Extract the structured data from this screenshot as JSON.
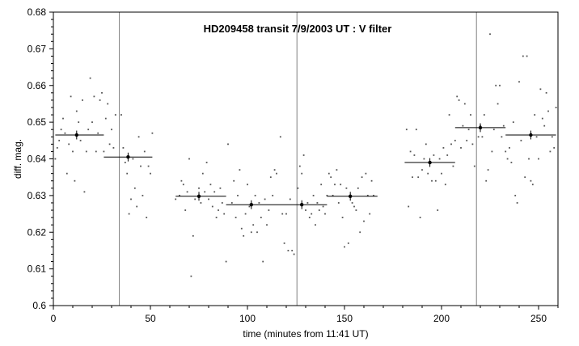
{
  "chart_data": {
    "type": "scatter",
    "title": "HD209458 transit 7/9/2003 UT : V filter",
    "xlabel": "time (minutes from 11:41 UT)",
    "ylabel": "diff. mag.",
    "xlim": [
      0,
      260
    ],
    "ylim": [
      0.6,
      0.68
    ],
    "x_ticks": [
      0,
      50,
      100,
      150,
      200,
      250
    ],
    "x_tick_labels": [
      "0",
      "50",
      "100",
      "150",
      "200",
      "250"
    ],
    "y_ticks": [
      0.6,
      0.61,
      0.62,
      0.63,
      0.64,
      0.65,
      0.66,
      0.67,
      0.68
    ],
    "y_tick_labels": [
      "0.6",
      "0.61",
      "0.62",
      "0.63",
      "0.64",
      "0.65",
      "0.66",
      "0.67",
      "0.68"
    ],
    "grid": false,
    "legend": "none",
    "vertical_lines_x": [
      34,
      125.5,
      218
    ],
    "colors": {
      "points": "#000000",
      "lines": "#808080",
      "axes": "#000000"
    },
    "points": [
      {
        "x": 1,
        "y": 0.64
      },
      {
        "x": 2,
        "y": 0.643
      },
      {
        "x": 3,
        "y": 0.645
      },
      {
        "x": 4,
        "y": 0.648
      },
      {
        "x": 5,
        "y": 0.651
      },
      {
        "x": 6,
        "y": 0.647
      },
      {
        "x": 7,
        "y": 0.636
      },
      {
        "x": 8,
        "y": 0.644
      },
      {
        "x": 9,
        "y": 0.657
      },
      {
        "x": 10,
        "y": 0.642
      },
      {
        "x": 11,
        "y": 0.634
      },
      {
        "x": 12,
        "y": 0.653
      },
      {
        "x": 13,
        "y": 0.65
      },
      {
        "x": 14,
        "y": 0.645
      },
      {
        "x": 15,
        "y": 0.656
      },
      {
        "x": 16,
        "y": 0.631
      },
      {
        "x": 17,
        "y": 0.642
      },
      {
        "x": 18,
        "y": 0.648
      },
      {
        "x": 19,
        "y": 0.662
      },
      {
        "x": 20,
        "y": 0.65
      },
      {
        "x": 21,
        "y": 0.657
      },
      {
        "x": 22,
        "y": 0.642
      },
      {
        "x": 23,
        "y": 0.647
      },
      {
        "x": 24,
        "y": 0.656
      },
      {
        "x": 25,
        "y": 0.658
      },
      {
        "x": 26,
        "y": 0.642
      },
      {
        "x": 27,
        "y": 0.651
      },
      {
        "x": 28,
        "y": 0.655
      },
      {
        "x": 29,
        "y": 0.644
      },
      {
        "x": 30,
        "y": 0.648
      },
      {
        "x": 31,
        "y": 0.643
      },
      {
        "x": 32,
        "y": 0.652
      },
      {
        "x": 35,
        "y": 0.652
      },
      {
        "x": 36,
        "y": 0.643
      },
      {
        "x": 37,
        "y": 0.639
      },
      {
        "x": 38,
        "y": 0.636
      },
      {
        "x": 39,
        "y": 0.625
      },
      {
        "x": 40,
        "y": 0.629
      },
      {
        "x": 41,
        "y": 0.64
      },
      {
        "x": 42,
        "y": 0.632
      },
      {
        "x": 43,
        "y": 0.627
      },
      {
        "x": 44,
        "y": 0.646
      },
      {
        "x": 45,
        "y": 0.638
      },
      {
        "x": 46,
        "y": 0.63
      },
      {
        "x": 47,
        "y": 0.642
      },
      {
        "x": 48,
        "y": 0.624
      },
      {
        "x": 49,
        "y": 0.638
      },
      {
        "x": 50,
        "y": 0.636
      },
      {
        "x": 51,
        "y": 0.647
      },
      {
        "x": 63,
        "y": 0.629
      },
      {
        "x": 65,
        "y": 0.63
      },
      {
        "x": 66,
        "y": 0.634
      },
      {
        "x": 67,
        "y": 0.633
      },
      {
        "x": 68,
        "y": 0.626
      },
      {
        "x": 69,
        "y": 0.631
      },
      {
        "x": 70,
        "y": 0.64
      },
      {
        "x": 71,
        "y": 0.608
      },
      {
        "x": 72,
        "y": 0.619
      },
      {
        "x": 73,
        "y": 0.629
      },
      {
        "x": 75,
        "y": 0.632
      },
      {
        "x": 76,
        "y": 0.628
      },
      {
        "x": 77,
        "y": 0.636
      },
      {
        "x": 78,
        "y": 0.631
      },
      {
        "x": 79,
        "y": 0.639
      },
      {
        "x": 80,
        "y": 0.629
      },
      {
        "x": 81,
        "y": 0.633
      },
      {
        "x": 82,
        "y": 0.627
      },
      {
        "x": 83,
        "y": 0.631
      },
      {
        "x": 84,
        "y": 0.624
      },
      {
        "x": 85,
        "y": 0.626
      },
      {
        "x": 86,
        "y": 0.632
      },
      {
        "x": 87,
        "y": 0.628
      },
      {
        "x": 88,
        "y": 0.625
      },
      {
        "x": 89,
        "y": 0.612
      },
      {
        "x": 90,
        "y": 0.644
      },
      {
        "x": 92,
        "y": 0.628
      },
      {
        "x": 93,
        "y": 0.634
      },
      {
        "x": 94,
        "y": 0.624
      },
      {
        "x": 95,
        "y": 0.63
      },
      {
        "x": 96,
        "y": 0.637
      },
      {
        "x": 97,
        "y": 0.621
      },
      {
        "x": 98,
        "y": 0.619
      },
      {
        "x": 99,
        "y": 0.625
      },
      {
        "x": 100,
        "y": 0.633
      },
      {
        "x": 101,
        "y": 0.627
      },
      {
        "x": 102,
        "y": 0.62
      },
      {
        "x": 103,
        "y": 0.622
      },
      {
        "x": 104,
        "y": 0.63
      },
      {
        "x": 105,
        "y": 0.62
      },
      {
        "x": 106,
        "y": 0.628
      },
      {
        "x": 107,
        "y": 0.624
      },
      {
        "x": 108,
        "y": 0.612
      },
      {
        "x": 109,
        "y": 0.629
      },
      {
        "x": 110,
        "y": 0.622
      },
      {
        "x": 111,
        "y": 0.626
      },
      {
        "x": 112,
        "y": 0.635
      },
      {
        "x": 113,
        "y": 0.63
      },
      {
        "x": 114,
        "y": 0.637
      },
      {
        "x": 115,
        "y": 0.636
      },
      {
        "x": 117,
        "y": 0.646
      },
      {
        "x": 118,
        "y": 0.625
      },
      {
        "x": 119,
        "y": 0.617
      },
      {
        "x": 120,
        "y": 0.625
      },
      {
        "x": 121,
        "y": 0.615
      },
      {
        "x": 122,
        "y": 0.629
      },
      {
        "x": 123,
        "y": 0.615
      },
      {
        "x": 124,
        "y": 0.614
      },
      {
        "x": 126,
        "y": 0.632
      },
      {
        "x": 127,
        "y": 0.638
      },
      {
        "x": 128,
        "y": 0.636
      },
      {
        "x": 129,
        "y": 0.641
      },
      {
        "x": 130,
        "y": 0.626
      },
      {
        "x": 131,
        "y": 0.628
      },
      {
        "x": 132,
        "y": 0.624
      },
      {
        "x": 133,
        "y": 0.625
      },
      {
        "x": 134,
        "y": 0.63
      },
      {
        "x": 135,
        "y": 0.622
      },
      {
        "x": 136,
        "y": 0.628
      },
      {
        "x": 137,
        "y": 0.626
      },
      {
        "x": 138,
        "y": 0.633
      },
      {
        "x": 139,
        "y": 0.627
      },
      {
        "x": 140,
        "y": 0.625
      },
      {
        "x": 141,
        "y": 0.63
      },
      {
        "x": 142,
        "y": 0.636
      },
      {
        "x": 143,
        "y": 0.635
      },
      {
        "x": 144,
        "y": 0.63
      },
      {
        "x": 145,
        "y": 0.633
      },
      {
        "x": 146,
        "y": 0.637
      },
      {
        "x": 147,
        "y": 0.628
      },
      {
        "x": 148,
        "y": 0.633
      },
      {
        "x": 149,
        "y": 0.624
      },
      {
        "x": 150,
        "y": 0.616
      },
      {
        "x": 151,
        "y": 0.632
      },
      {
        "x": 152,
        "y": 0.617
      },
      {
        "x": 153,
        "y": 0.63
      },
      {
        "x": 154,
        "y": 0.628
      },
      {
        "x": 155,
        "y": 0.627
      },
      {
        "x": 156,
        "y": 0.626
      },
      {
        "x": 157,
        "y": 0.632
      },
      {
        "x": 158,
        "y": 0.62
      },
      {
        "x": 159,
        "y": 0.635
      },
      {
        "x": 160,
        "y": 0.623
      },
      {
        "x": 161,
        "y": 0.636
      },
      {
        "x": 162,
        "y": 0.63
      },
      {
        "x": 163,
        "y": 0.625
      },
      {
        "x": 164,
        "y": 0.634
      },
      {
        "x": 165,
        "y": 0.63
      },
      {
        "x": 182,
        "y": 0.648
      },
      {
        "x": 183,
        "y": 0.627
      },
      {
        "x": 184,
        "y": 0.642
      },
      {
        "x": 185,
        "y": 0.635
      },
      {
        "x": 186,
        "y": 0.641
      },
      {
        "x": 187,
        "y": 0.648
      },
      {
        "x": 188,
        "y": 0.635
      },
      {
        "x": 189,
        "y": 0.624
      },
      {
        "x": 190,
        "y": 0.637
      },
      {
        "x": 191,
        "y": 0.64
      },
      {
        "x": 192,
        "y": 0.644
      },
      {
        "x": 193,
        "y": 0.636
      },
      {
        "x": 194,
        "y": 0.639
      },
      {
        "x": 195,
        "y": 0.634
      },
      {
        "x": 196,
        "y": 0.641
      },
      {
        "x": 197,
        "y": 0.634
      },
      {
        "x": 198,
        "y": 0.626
      },
      {
        "x": 199,
        "y": 0.64
      },
      {
        "x": 200,
        "y": 0.636
      },
      {
        "x": 201,
        "y": 0.643
      },
      {
        "x": 202,
        "y": 0.633
      },
      {
        "x": 203,
        "y": 0.641
      },
      {
        "x": 204,
        "y": 0.652
      },
      {
        "x": 205,
        "y": 0.644
      },
      {
        "x": 206,
        "y": 0.638
      },
      {
        "x": 207,
        "y": 0.645
      },
      {
        "x": 208,
        "y": 0.657
      },
      {
        "x": 209,
        "y": 0.656
      },
      {
        "x": 210,
        "y": 0.643
      },
      {
        "x": 211,
        "y": 0.649
      },
      {
        "x": 212,
        "y": 0.655
      },
      {
        "x": 213,
        "y": 0.645
      },
      {
        "x": 214,
        "y": 0.648
      },
      {
        "x": 215,
        "y": 0.652
      },
      {
        "x": 216,
        "y": 0.644
      },
      {
        "x": 217,
        "y": 0.638
      },
      {
        "x": 219,
        "y": 0.646
      },
      {
        "x": 220,
        "y": 0.649
      },
      {
        "x": 221,
        "y": 0.646
      },
      {
        "x": 222,
        "y": 0.652
      },
      {
        "x": 223,
        "y": 0.634
      },
      {
        "x": 224,
        "y": 0.637
      },
      {
        "x": 225,
        "y": 0.674
      },
      {
        "x": 226,
        "y": 0.642
      },
      {
        "x": 227,
        "y": 0.648
      },
      {
        "x": 228,
        "y": 0.66
      },
      {
        "x": 229,
        "y": 0.655
      },
      {
        "x": 230,
        "y": 0.66
      },
      {
        "x": 231,
        "y": 0.646
      },
      {
        "x": 232,
        "y": 0.649
      },
      {
        "x": 233,
        "y": 0.642
      },
      {
        "x": 234,
        "y": 0.64
      },
      {
        "x": 235,
        "y": 0.643
      },
      {
        "x": 236,
        "y": 0.639
      },
      {
        "x": 237,
        "y": 0.65
      },
      {
        "x": 238,
        "y": 0.63
      },
      {
        "x": 239,
        "y": 0.628
      },
      {
        "x": 240,
        "y": 0.661
      },
      {
        "x": 241,
        "y": 0.645
      },
      {
        "x": 242,
        "y": 0.668
      },
      {
        "x": 243,
        "y": 0.635
      },
      {
        "x": 244,
        "y": 0.668
      },
      {
        "x": 245,
        "y": 0.64
      },
      {
        "x": 246,
        "y": 0.634
      },
      {
        "x": 247,
        "y": 0.633
      },
      {
        "x": 248,
        "y": 0.652
      },
      {
        "x": 249,
        "y": 0.646
      },
      {
        "x": 250,
        "y": 0.64
      },
      {
        "x": 251,
        "y": 0.659
      },
      {
        "x": 252,
        "y": 0.651
      },
      {
        "x": 253,
        "y": 0.649
      },
      {
        "x": 254,
        "y": 0.658
      },
      {
        "x": 255,
        "y": 0.653
      },
      {
        "x": 256,
        "y": 0.642
      },
      {
        "x": 257,
        "y": 0.646
      },
      {
        "x": 258,
        "y": 0.643
      },
      {
        "x": 259,
        "y": 0.654
      }
    ],
    "binned_means": [
      {
        "x_start": 1,
        "x_end": 26,
        "x": 12,
        "y": 0.6465,
        "yerr": 0.0012
      },
      {
        "x_start": 26,
        "x_end": 51,
        "x": 38.5,
        "y": 0.6405,
        "yerr": 0.0012
      },
      {
        "x_start": 63,
        "x_end": 89,
        "x": 75,
        "y": 0.6298,
        "yerr": 0.0012
      },
      {
        "x_start": 89,
        "x_end": 115,
        "x": 102,
        "y": 0.6275,
        "yerr": 0.0012
      },
      {
        "x_start": 115,
        "x_end": 141,
        "x": 128,
        "y": 0.6275,
        "yerr": 0.0012
      },
      {
        "x_start": 141,
        "x_end": 167,
        "x": 153,
        "y": 0.6298,
        "yerr": 0.0012
      },
      {
        "x_start": 181,
        "x_end": 207,
        "x": 194,
        "y": 0.639,
        "yerr": 0.0012
      },
      {
        "x_start": 207,
        "x_end": 233,
        "x": 220,
        "y": 0.6485,
        "yerr": 0.0012
      },
      {
        "x_start": 233,
        "x_end": 259,
        "x": 246,
        "y": 0.6465,
        "yerr": 0.0012
      }
    ]
  }
}
